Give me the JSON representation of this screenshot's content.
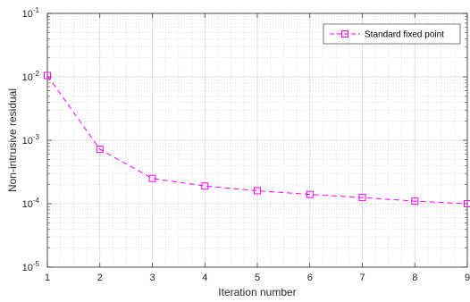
{
  "chart_data": {
    "type": "line",
    "xlabel": "Iteration number",
    "ylabel": "Non-intrusive residual",
    "xlim": [
      1,
      9
    ],
    "ylim": [
      1e-05,
      0.1
    ],
    "yscale": "log",
    "grid": true,
    "minor_grid": true,
    "legend_position": "top-right",
    "x_ticks": [
      "1",
      "2",
      "3",
      "4",
      "5",
      "6",
      "7",
      "8",
      "9"
    ],
    "y_ticks": [
      {
        "base": "10",
        "exp": "-5",
        "value": 1e-05
      },
      {
        "base": "10",
        "exp": "-4",
        "value": 0.0001
      },
      {
        "base": "10",
        "exp": "-3",
        "value": 0.001
      },
      {
        "base": "10",
        "exp": "-2",
        "value": 0.01
      },
      {
        "base": "10",
        "exp": "-1",
        "value": 0.1
      }
    ],
    "series": [
      {
        "name": "Standard fixed point",
        "color": "#ff00ff",
        "line_style": "dashed",
        "marker": "square",
        "x": [
          1,
          2,
          3,
          4,
          5,
          6,
          7,
          8,
          9
        ],
        "y": [
          0.0105,
          0.00072,
          0.00025,
          0.00019,
          0.00016,
          0.00014,
          0.000125,
          0.00011,
          0.0001
        ]
      }
    ]
  }
}
